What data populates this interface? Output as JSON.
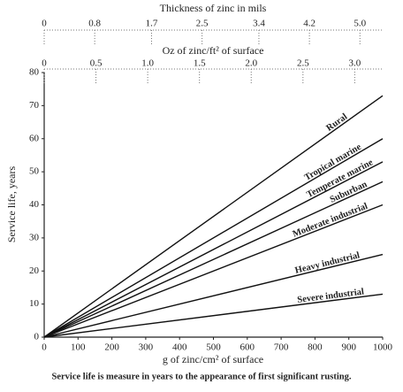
{
  "chart_data": {
    "type": "line",
    "x_label": "g of zinc/cm² of surface",
    "y_label": "Service life, years",
    "caption": "Service life is measure in years to the appearance of first significant rusting.",
    "x": [
      0,
      1000
    ],
    "xlim": [
      0,
      1000
    ],
    "xticks": [
      0,
      100,
      200,
      300,
      400,
      500,
      600,
      700,
      800,
      900,
      1000
    ],
    "ylim": [
      0,
      80
    ],
    "yticks": [
      0,
      10,
      20,
      30,
      40,
      50,
      60,
      70,
      80
    ],
    "color": "#111111",
    "series": [
      {
        "name": "Rural",
        "values": [
          0,
          73
        ]
      },
      {
        "name": "Tropical marine",
        "values": [
          0,
          60
        ]
      },
      {
        "name": "Temperate marine",
        "values": [
          0,
          53
        ]
      },
      {
        "name": "Suburban",
        "values": [
          0,
          47
        ]
      },
      {
        "name": "Moderate industrial",
        "values": [
          0,
          40
        ]
      },
      {
        "name": "Heavy industrial",
        "values": [
          0,
          25
        ]
      },
      {
        "name": "Severe industrial",
        "values": [
          0,
          13
        ]
      }
    ],
    "top_axes": [
      {
        "title": "Thickness of zinc in mils",
        "xlim": [
          0,
          5.36
        ],
        "xticks": [
          0,
          0.8,
          1.7,
          2.5,
          3.4,
          4.2,
          {
            "value": 5,
            "label": "5.0"
          }
        ]
      },
      {
        "title": "Oz of zinc/ft² of surface",
        "xlim": [
          0,
          3.27
        ],
        "xticks": [
          0,
          0.5,
          {
            "value": 1,
            "label": "1.0"
          },
          1.5,
          {
            "value": 2,
            "label": "2.0"
          },
          2.5,
          {
            "value": 3,
            "label": "3.0"
          }
        ]
      }
    ]
  }
}
